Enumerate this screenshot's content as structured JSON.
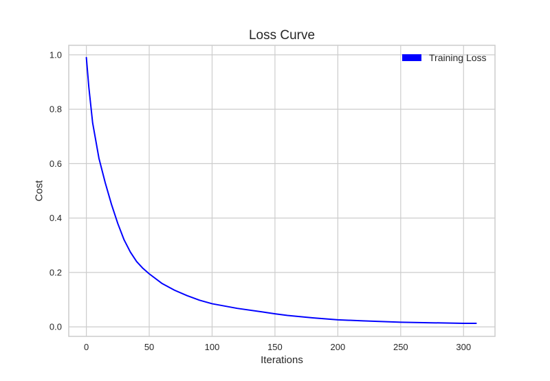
{
  "chart_data": {
    "type": "line",
    "title": "Loss Curve",
    "xlabel": "Iterations",
    "ylabel": "Cost",
    "xlim": [
      -14,
      325
    ],
    "ylim": [
      -0.035,
      1.035
    ],
    "xticks": [
      0,
      50,
      100,
      150,
      200,
      250,
      300
    ],
    "xtick_labels": [
      "0",
      "50",
      "100",
      "150",
      "200",
      "250",
      "300"
    ],
    "yticks": [
      0.0,
      0.2,
      0.4,
      0.6,
      0.8,
      1.0
    ],
    "ytick_labels": [
      "0.0",
      "0.2",
      "0.4",
      "0.6",
      "0.8",
      "1.0"
    ],
    "grid": true,
    "legend_position": "top-right",
    "series": [
      {
        "name": "Training Loss",
        "color": "#0000ff",
        "x": [
          0,
          2,
          5,
          10,
          15,
          20,
          25,
          30,
          35,
          40,
          45,
          50,
          60,
          70,
          80,
          90,
          100,
          120,
          140,
          150,
          160,
          180,
          200,
          220,
          250,
          275,
          300,
          310
        ],
        "y": [
          0.99,
          0.88,
          0.75,
          0.62,
          0.53,
          0.45,
          0.38,
          0.32,
          0.275,
          0.24,
          0.215,
          0.195,
          0.16,
          0.135,
          0.115,
          0.098,
          0.085,
          0.068,
          0.055,
          0.048,
          0.042,
          0.033,
          0.026,
          0.022,
          0.017,
          0.015,
          0.013,
          0.013
        ]
      }
    ]
  }
}
